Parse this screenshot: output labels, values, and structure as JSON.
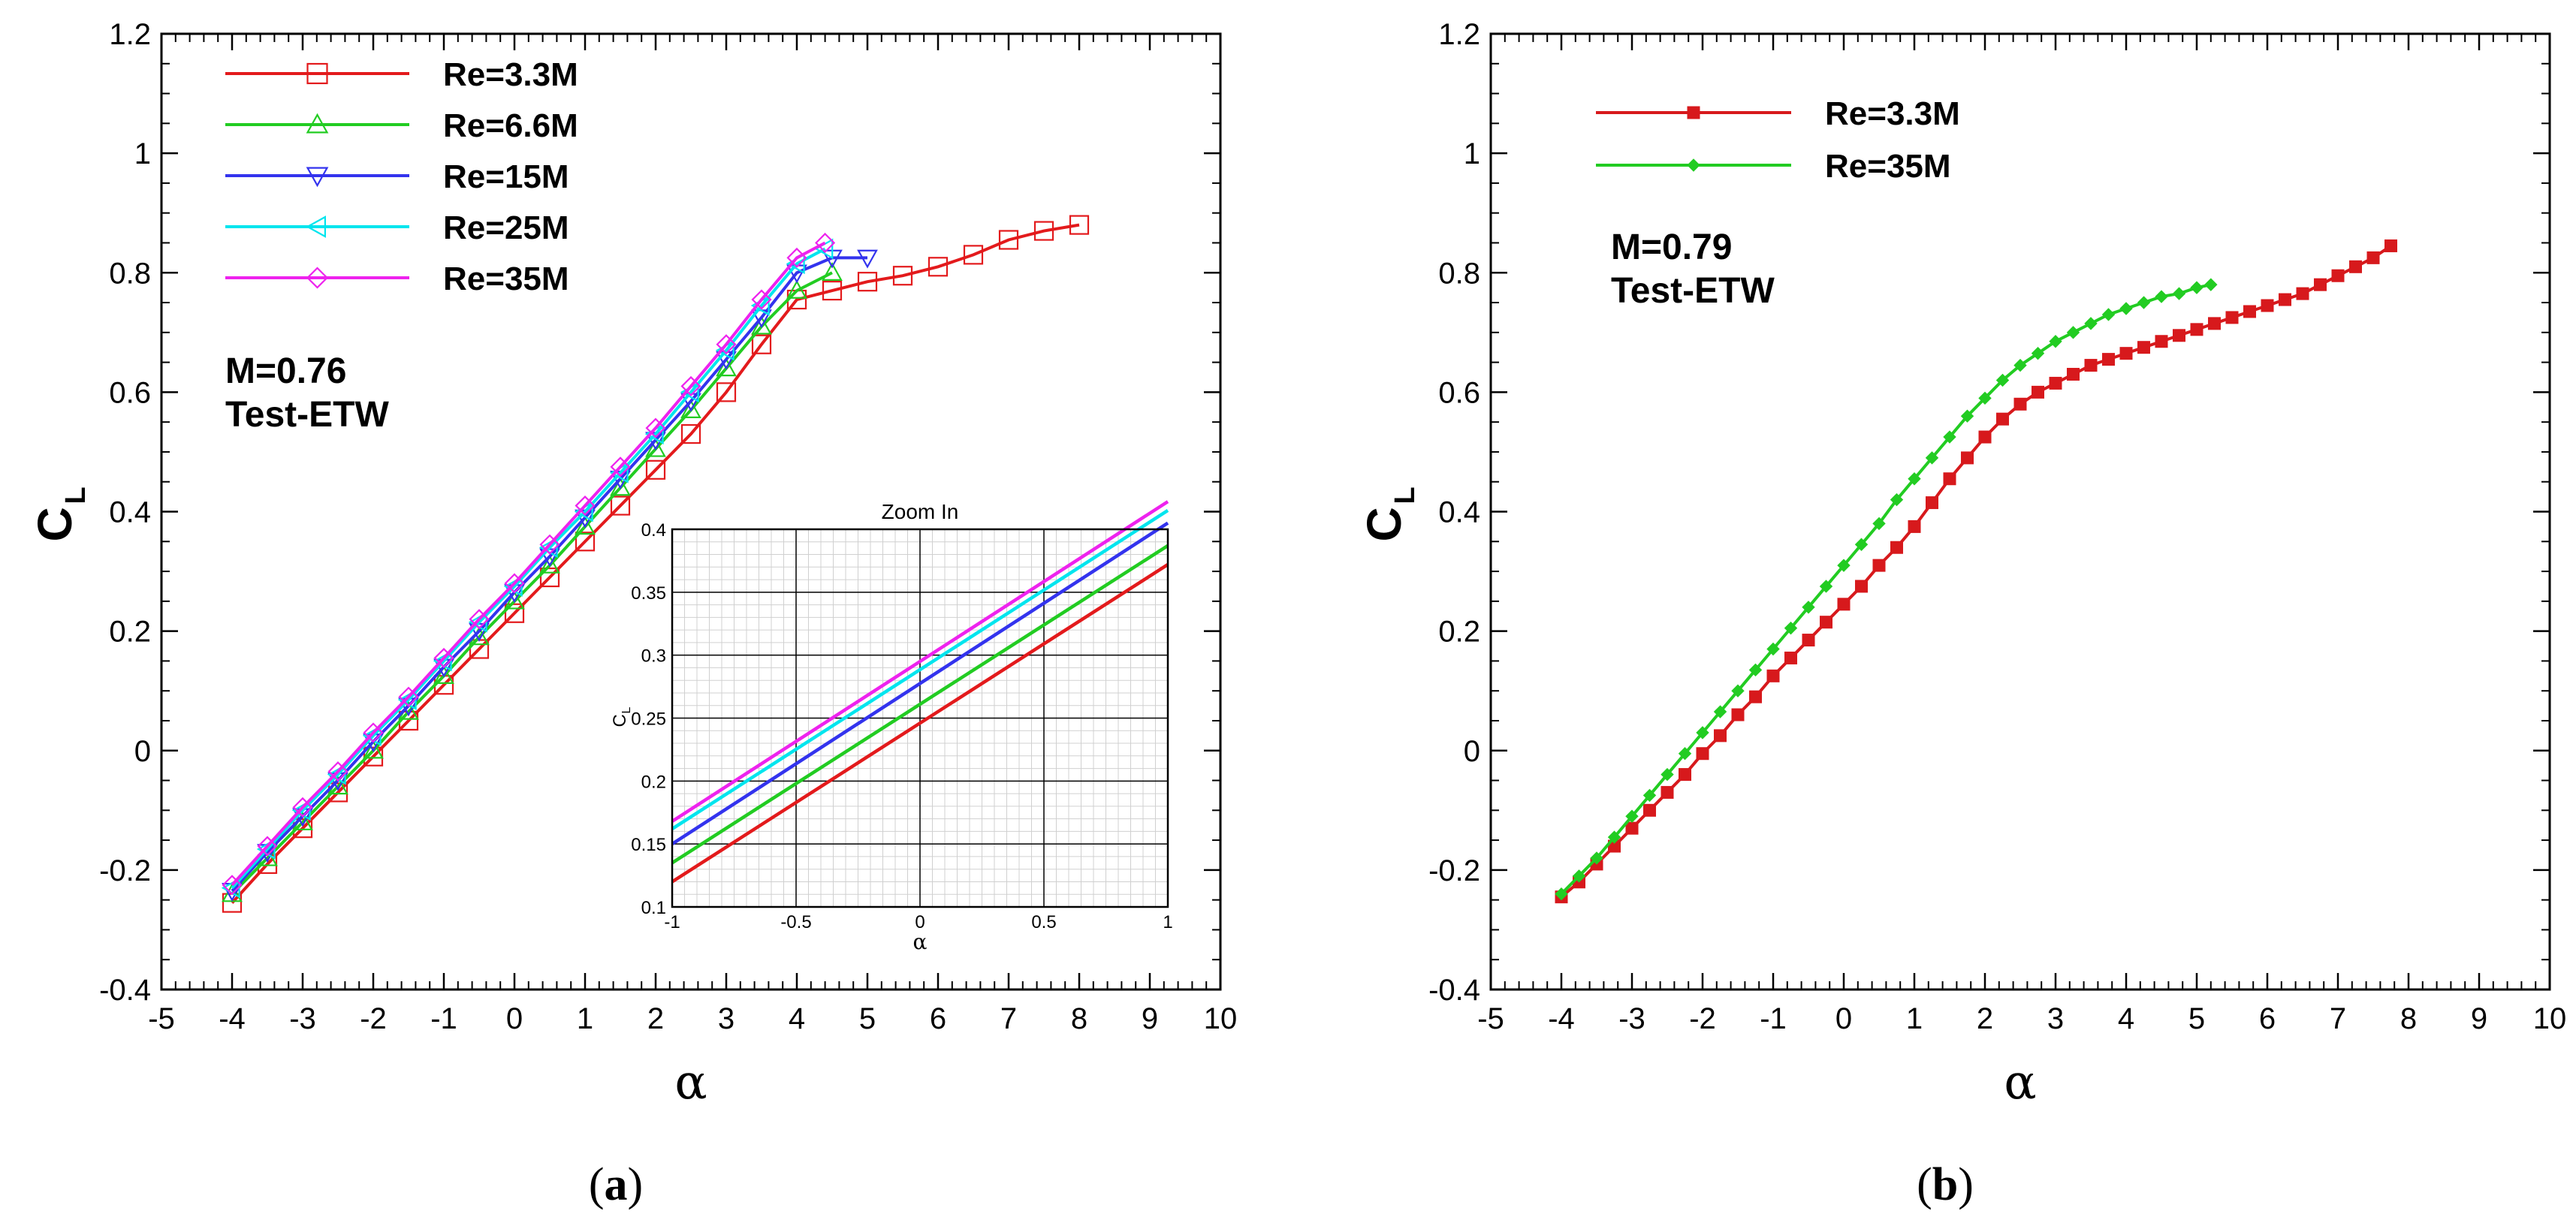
{
  "chart_data": [
    {
      "id": "a",
      "type": "line",
      "caption": "a",
      "xlabel": "α",
      "ylabel": "C",
      "ylabel_sub": "L",
      "xlim": [
        -5,
        10
      ],
      "ylim": [
        -0.4,
        1.2
      ],
      "xticks": [
        "-5",
        "-4",
        "-3",
        "-2",
        "-1",
        "0",
        "1",
        "2",
        "3",
        "4",
        "5",
        "6",
        "7",
        "8",
        "9",
        "10"
      ],
      "yticks": [
        "-0.4",
        "-0.2",
        "0",
        "0.2",
        "0.4",
        "0.6",
        "0.8",
        "1",
        "1.2"
      ],
      "annotation": [
        "M=0.76",
        "Test-ETW"
      ],
      "series": [
        {
          "name": "Re=3.3M",
          "color": "#e31a1c",
          "marker": "square",
          "x": [
            -4,
            -3.5,
            -3,
            -2.5,
            -2,
            -1.5,
            -1,
            -0.5,
            0,
            0.5,
            1,
            1.5,
            2,
            2.5,
            3,
            3.5,
            4,
            4.5,
            5,
            5.5,
            6,
            6.5,
            7,
            7.5,
            8
          ],
          "y": [
            -0.255,
            -0.19,
            -0.13,
            -0.07,
            -0.01,
            0.05,
            0.11,
            0.17,
            0.23,
            0.29,
            0.35,
            0.41,
            0.47,
            0.53,
            0.6,
            0.68,
            0.755,
            0.77,
            0.785,
            0.795,
            0.81,
            0.83,
            0.855,
            0.87,
            0.88
          ]
        },
        {
          "name": "Re=6.6M",
          "color": "#22cc22",
          "marker": "triangle-up",
          "x": [
            -4,
            -3.5,
            -3,
            -2.5,
            -2,
            -1.5,
            -1,
            -0.5,
            0,
            0.5,
            1,
            1.5,
            2,
            2.5,
            3,
            3.5,
            4,
            4.5
          ],
          "y": [
            -0.24,
            -0.18,
            -0.12,
            -0.06,
            0.0,
            0.065,
            0.125,
            0.19,
            0.25,
            0.31,
            0.375,
            0.44,
            0.505,
            0.57,
            0.64,
            0.71,
            0.77,
            0.8
          ]
        },
        {
          "name": "Re=15M",
          "color": "#3333ee",
          "marker": "triangle-down",
          "x": [
            -4,
            -3.5,
            -3,
            -2.5,
            -2,
            -1.5,
            -1,
            -0.5,
            0,
            0.5,
            1,
            1.5,
            2,
            2.5,
            3,
            3.5,
            4,
            4.5,
            5
          ],
          "y": [
            -0.235,
            -0.17,
            -0.11,
            -0.05,
            0.015,
            0.075,
            0.14,
            0.2,
            0.265,
            0.325,
            0.39,
            0.455,
            0.52,
            0.585,
            0.655,
            0.725,
            0.8,
            0.825,
            0.825
          ]
        },
        {
          "name": "Re=25M",
          "color": "#00e5ee",
          "marker": "triangle-left",
          "x": [
            -4,
            -3.5,
            -3,
            -2.5,
            -2,
            -1.5,
            -1,
            -0.5,
            0,
            0.5,
            1,
            1.5,
            2,
            2.5,
            3,
            3.5,
            4,
            4.4
          ],
          "y": [
            -0.23,
            -0.165,
            -0.1,
            -0.04,
            0.025,
            0.085,
            0.15,
            0.215,
            0.275,
            0.34,
            0.4,
            0.465,
            0.53,
            0.6,
            0.67,
            0.745,
            0.815,
            0.84
          ]
        },
        {
          "name": "Re=35M",
          "color": "#ee22ee",
          "marker": "diamond",
          "x": [
            -4,
            -3.5,
            -3,
            -2.5,
            -2,
            -1.5,
            -1,
            -0.5,
            0,
            0.5,
            1,
            1.5,
            2,
            2.5,
            3,
            3.5,
            4,
            4.4
          ],
          "y": [
            -0.225,
            -0.16,
            -0.095,
            -0.035,
            0.03,
            0.09,
            0.155,
            0.22,
            0.28,
            0.345,
            0.41,
            0.475,
            0.54,
            0.61,
            0.68,
            0.755,
            0.825,
            0.85
          ]
        }
      ],
      "inset": {
        "title": "Zoom In",
        "xlabel": "α",
        "ylabel": "C",
        "ylabel_sub": "L",
        "xlim": [
          -1,
          1
        ],
        "ylim": [
          0.1,
          0.4
        ],
        "xticks": [
          "-1",
          "-0.5",
          "0",
          "0.5",
          "1"
        ],
        "yticks": [
          "0.1",
          "0.15",
          "0.2",
          "0.25",
          "0.3",
          "0.35",
          "0.4"
        ],
        "series": [
          {
            "name": "Re=3.3M",
            "color": "#e31a1c",
            "x": [
              -1,
              1
            ],
            "y": [
              0.12,
              0.372
            ]
          },
          {
            "name": "Re=6.6M",
            "color": "#22cc22",
            "x": [
              -1,
              1
            ],
            "y": [
              0.135,
              0.387
            ]
          },
          {
            "name": "Re=15M",
            "color": "#3333ee",
            "x": [
              -1,
              1
            ],
            "y": [
              0.15,
              0.405
            ]
          },
          {
            "name": "Re=25M",
            "color": "#00e5ee",
            "x": [
              -1,
              1
            ],
            "y": [
              0.162,
              0.415
            ]
          },
          {
            "name": "Re=35M",
            "color": "#ee22ee",
            "x": [
              -1,
              1
            ],
            "y": [
              0.168,
              0.422
            ]
          }
        ]
      }
    },
    {
      "id": "b",
      "type": "line",
      "caption": "b",
      "xlabel": "α",
      "ylabel": "C",
      "ylabel_sub": "L",
      "xlim": [
        -5,
        10
      ],
      "ylim": [
        -0.4,
        1.2
      ],
      "xticks": [
        "-5",
        "-4",
        "-3",
        "-2",
        "-1",
        "0",
        "1",
        "2",
        "3",
        "4",
        "5",
        "6",
        "7",
        "8",
        "9",
        "10"
      ],
      "yticks": [
        "-0.4",
        "-0.2",
        "0",
        "0.2",
        "0.4",
        "0.6",
        "0.8",
        "1",
        "1.2"
      ],
      "annotation": [
        "M=0.79",
        "Test-ETW"
      ],
      "series": [
        {
          "name": "Re=3.3M",
          "color": "#d7191c",
          "marker": "filled-square",
          "x": [
            -4,
            -3.75,
            -3.5,
            -3.25,
            -3,
            -2.75,
            -2.5,
            -2.25,
            -2,
            -1.75,
            -1.5,
            -1.25,
            -1,
            -0.75,
            -0.5,
            -0.25,
            0,
            0.25,
            0.5,
            0.75,
            1,
            1.25,
            1.5,
            1.75,
            2,
            2.25,
            2.5,
            2.75,
            3,
            3.25,
            3.5,
            3.75,
            4,
            4.25,
            4.5,
            4.75,
            5,
            5.25,
            5.5,
            5.75,
            6,
            6.25,
            6.5,
            6.75,
            7,
            7.25,
            7.5,
            7.75
          ],
          "y": [
            -0.245,
            -0.22,
            -0.19,
            -0.16,
            -0.13,
            -0.1,
            -0.07,
            -0.04,
            -0.005,
            0.025,
            0.06,
            0.09,
            0.125,
            0.155,
            0.185,
            0.215,
            0.245,
            0.275,
            0.31,
            0.34,
            0.375,
            0.415,
            0.455,
            0.49,
            0.525,
            0.555,
            0.58,
            0.6,
            0.615,
            0.63,
            0.645,
            0.655,
            0.665,
            0.675,
            0.685,
            0.695,
            0.705,
            0.715,
            0.725,
            0.735,
            0.745,
            0.755,
            0.765,
            0.78,
            0.795,
            0.81,
            0.825,
            0.845
          ]
        },
        {
          "name": "Re=35M",
          "color": "#22cc22",
          "marker": "filled-diamond",
          "x": [
            -4,
            -3.75,
            -3.5,
            -3.25,
            -3,
            -2.75,
            -2.5,
            -2.25,
            -2,
            -1.75,
            -1.5,
            -1.25,
            -1,
            -0.75,
            -0.5,
            -0.25,
            0,
            0.25,
            0.5,
            0.75,
            1,
            1.25,
            1.5,
            1.75,
            2,
            2.25,
            2.5,
            2.75,
            3,
            3.25,
            3.5,
            3.75,
            4,
            4.25,
            4.5,
            4.75,
            5,
            5.2
          ],
          "y": [
            -0.24,
            -0.21,
            -0.18,
            -0.145,
            -0.11,
            -0.075,
            -0.04,
            -0.005,
            0.03,
            0.065,
            0.1,
            0.135,
            0.17,
            0.205,
            0.24,
            0.275,
            0.31,
            0.345,
            0.38,
            0.42,
            0.455,
            0.49,
            0.525,
            0.56,
            0.59,
            0.62,
            0.645,
            0.665,
            0.685,
            0.7,
            0.715,
            0.73,
            0.74,
            0.75,
            0.76,
            0.765,
            0.775,
            0.78
          ]
        }
      ]
    }
  ]
}
